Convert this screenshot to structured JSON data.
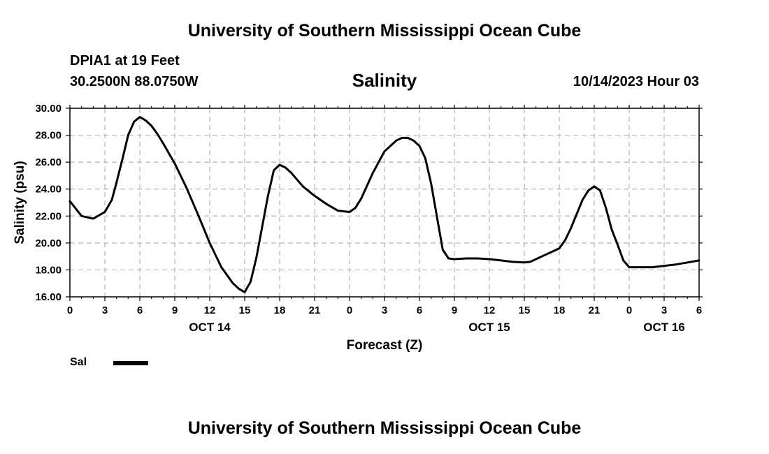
{
  "header": {
    "title": "University of Southern Mississippi Ocean Cube",
    "station": "DPIA1 at 19 Feet",
    "coords": "30.2500N  88.0750W",
    "datetime": "10/14/2023 Hour 03"
  },
  "footer": {
    "title": "University of Southern Mississippi Ocean Cube"
  },
  "chart_data": {
    "type": "line",
    "title": "Salinity",
    "xlabel": "Forecast (Z)",
    "ylabel": "Salinity (psu)",
    "ylim": [
      16,
      30
    ],
    "xlim": [
      0,
      54
    ],
    "grid": true,
    "legend_position": "bottom-left",
    "line_color": "#000000",
    "x_ticks": [
      {
        "h": 0,
        "label": "0"
      },
      {
        "h": 3,
        "label": "3"
      },
      {
        "h": 6,
        "label": "6"
      },
      {
        "h": 9,
        "label": "9"
      },
      {
        "h": 12,
        "label": "12"
      },
      {
        "h": 15,
        "label": "15"
      },
      {
        "h": 18,
        "label": "18"
      },
      {
        "h": 21,
        "label": "21"
      },
      {
        "h": 24,
        "label": "0"
      },
      {
        "h": 27,
        "label": "3"
      },
      {
        "h": 30,
        "label": "6"
      },
      {
        "h": 33,
        "label": "9"
      },
      {
        "h": 36,
        "label": "12"
      },
      {
        "h": 39,
        "label": "15"
      },
      {
        "h": 42,
        "label": "18"
      },
      {
        "h": 45,
        "label": "21"
      },
      {
        "h": 48,
        "label": "0"
      },
      {
        "h": 51,
        "label": "3"
      },
      {
        "h": 54,
        "label": "6"
      }
    ],
    "y_ticks": [
      "16.00",
      "18.00",
      "20.00",
      "22.00",
      "24.00",
      "26.00",
      "28.00",
      "30.00"
    ],
    "date_labels": [
      {
        "h": 12,
        "label": "OCT 14"
      },
      {
        "h": 36,
        "label": "OCT 15"
      },
      {
        "h": 51,
        "label": "OCT 16"
      }
    ],
    "series": [
      {
        "name": "Sal",
        "x": [
          0,
          1,
          2,
          3,
          3.6,
          4,
          4.5,
          5,
          5.5,
          6,
          6.5,
          7,
          7.5,
          8,
          9,
          10,
          11,
          12,
          13,
          14,
          14.5,
          15,
          15.5,
          16,
          17,
          17.5,
          18,
          18.5,
          19,
          20,
          21,
          22,
          23,
          24,
          24.5,
          25,
          26,
          27,
          28,
          28.5,
          29,
          29.5,
          30,
          30.5,
          31,
          32,
          32.5,
          33,
          34,
          35,
          36,
          37,
          38,
          39,
          39.5,
          40,
          41,
          42,
          42.5,
          43,
          44,
          44.5,
          45,
          45.5,
          46,
          46.5,
          47,
          47.5,
          48,
          49,
          50,
          51,
          52,
          53,
          54
        ],
        "y": [
          23.1,
          22.0,
          21.8,
          22.3,
          23.2,
          24.5,
          26.2,
          28.0,
          29.0,
          29.35,
          29.1,
          28.7,
          28.1,
          27.4,
          25.9,
          24.1,
          22.1,
          20.0,
          18.2,
          17.0,
          16.6,
          16.35,
          17.1,
          18.9,
          23.5,
          25.4,
          25.8,
          25.6,
          25.2,
          24.2,
          23.5,
          22.9,
          22.4,
          22.3,
          22.6,
          23.3,
          25.2,
          26.8,
          27.6,
          27.8,
          27.8,
          27.6,
          27.2,
          26.3,
          24.4,
          19.5,
          18.85,
          18.8,
          18.85,
          18.85,
          18.8,
          18.7,
          18.6,
          18.55,
          18.6,
          18.8,
          19.2,
          19.6,
          20.2,
          21.1,
          23.2,
          23.9,
          24.2,
          23.9,
          22.6,
          21.0,
          19.9,
          18.7,
          18.2,
          18.2,
          18.2,
          18.3,
          18.4,
          18.55,
          18.7
        ]
      }
    ]
  }
}
